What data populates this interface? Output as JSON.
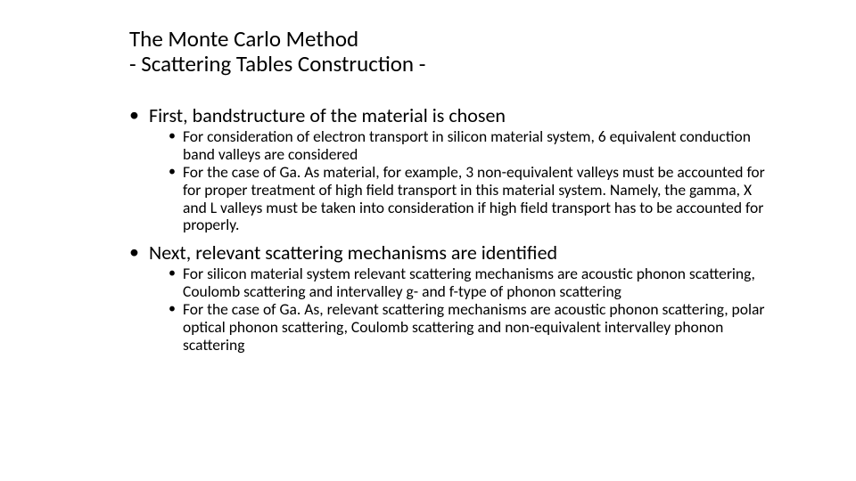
{
  "title_line1": "The Monte Carlo Method",
  "title_line2": "- Scattering Tables Construction -",
  "bullets": [
    {
      "text": "First, bandstructure of the material is chosen",
      "sub": [
        "For consideration of electron transport in silicon material system, 6 equivalent conduction band valleys are considered",
        "For the case of Ga. As material, for example, 3 non-equivalent valleys must be accounted for for proper treatment of high field transport in this material system. Namely, the gamma, X and L valleys must be taken into consideration if  high field transport has to be accounted for properly."
      ]
    },
    {
      "text": "Next, relevant scattering mechanisms are identified",
      "sub": [
        "For silicon material system relevant scattering mechanisms are acoustic phonon scattering, Coulomb scattering and intervalley g- and f-type of phonon scattering",
        "For the case of Ga. As, relevant scattering mechanisms are acoustic phonon scattering, polar optical phonon scattering, Coulomb scattering and non-equivalent intervalley phonon scattering"
      ]
    }
  ],
  "colors": {
    "background": "#ffffff",
    "text": "#000000"
  },
  "fonts": {
    "title_size_pt": 19,
    "l1_size_pt": 17,
    "l2_size_pt": 13
  }
}
